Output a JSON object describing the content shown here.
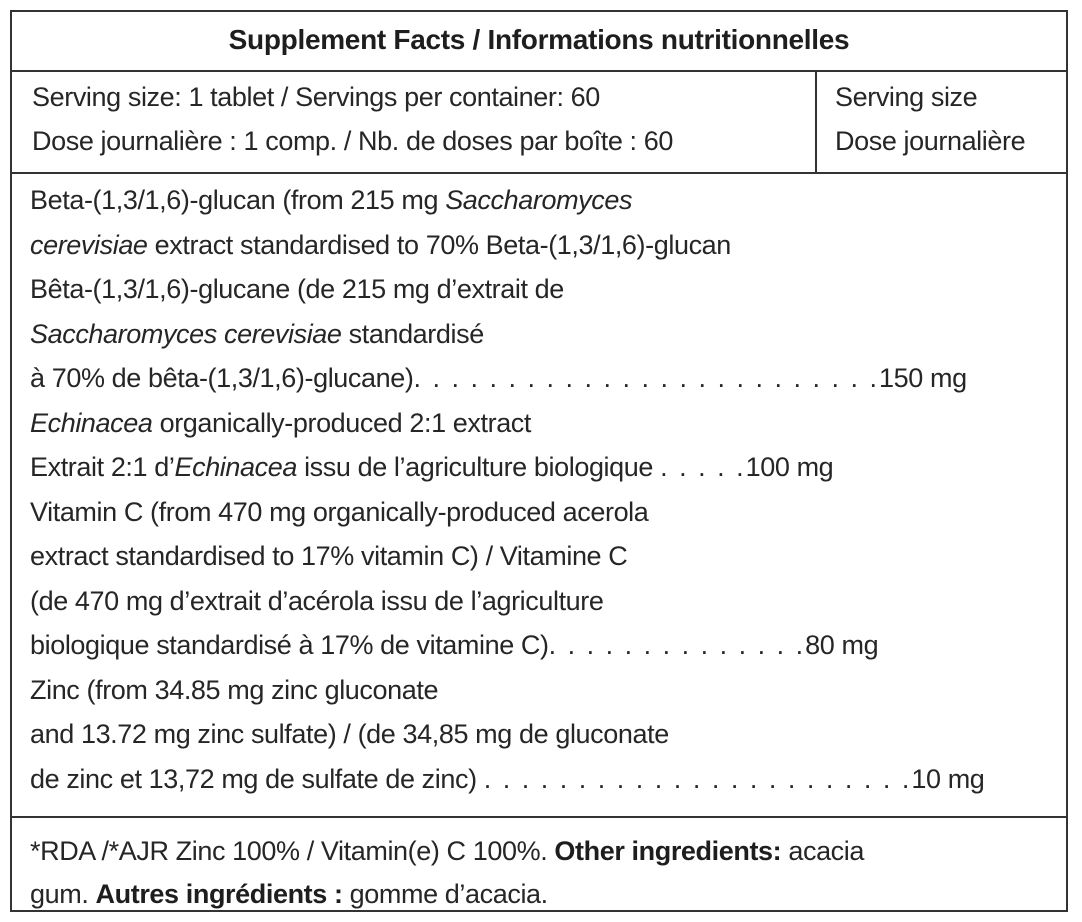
{
  "title": "Supplement Facts / Informations nutritionnelles",
  "serving": {
    "left_line1": "Serving size: 1 tablet / Servings per container: 60",
    "left_line2": "Dose journalière : 1 comp. / Nb. de doses par boîte : 60",
    "right_line1": "Serving size",
    "right_line2": "Dose journalière"
  },
  "ingredients": {
    "beta": {
      "l1_a": "Beta-(1,3/1,6)-glucan (from 215 mg ",
      "l1_b": "Saccharomyces",
      "l2_a": "cerevisiae",
      "l2_b": " extract standardised to 70% Beta-(1,3/1,6)-glucan",
      "l3": "Bêta-(1,3/1,6)-glucane (de 215 mg d’extrait de",
      "l4_a": "Saccharomyces cerevisiae",
      "l4_b": " standardisé",
      "l5_a": "à 70% de bêta-(1,3/1,6)-glucane)",
      "l5_dots": ". . . . . . . . . . . . . . . . . . . . . . . . .",
      "amount": "150 mg"
    },
    "echinacea": {
      "l1_a": "Echinacea",
      "l1_b": " organically-produced 2:1 extract",
      "l2_a": "Extrait 2:1 d’",
      "l2_b": "Echinacea",
      "l2_c": " issu de l’agriculture biologique ",
      "l2_dots": ". . . . .",
      "amount": "100 mg"
    },
    "vitamin_c": {
      "l1": "Vitamin C (from 470 mg organically-produced acerola",
      "l2": "extract standardised to 17% vitamin C) / Vitamine C",
      "l3": "(de 470 mg d’extrait d’acérola issu de l’agriculture",
      "l4_a": "biologique standardisé à 17% de vitamine C)",
      "l4_dots": ". . . . . . . . . . . . . .",
      "amount": "80 mg"
    },
    "zinc": {
      "l1": "Zinc (from 34.85 mg zinc gluconate",
      "l2": "and 13.72 mg zinc sulfate) / (de 34,85 mg de gluconate",
      "l3_a": "de zinc et 13,72 mg de sulfate de zinc) ",
      "l3_dots": ". . . . . . . . . . . . . . . . . . . . . . .",
      "amount": "10 mg"
    }
  },
  "footer": {
    "l1_a": "*RDA /*AJR Zinc 100% / Vitamin(e) C 100%. ",
    "l1_bold": "Other ingredients:",
    "l1_b": " acacia",
    "l2_a": "gum. ",
    "l2_bold": "Autres ingrédients :",
    "l2_b": " gomme d’acacia."
  }
}
